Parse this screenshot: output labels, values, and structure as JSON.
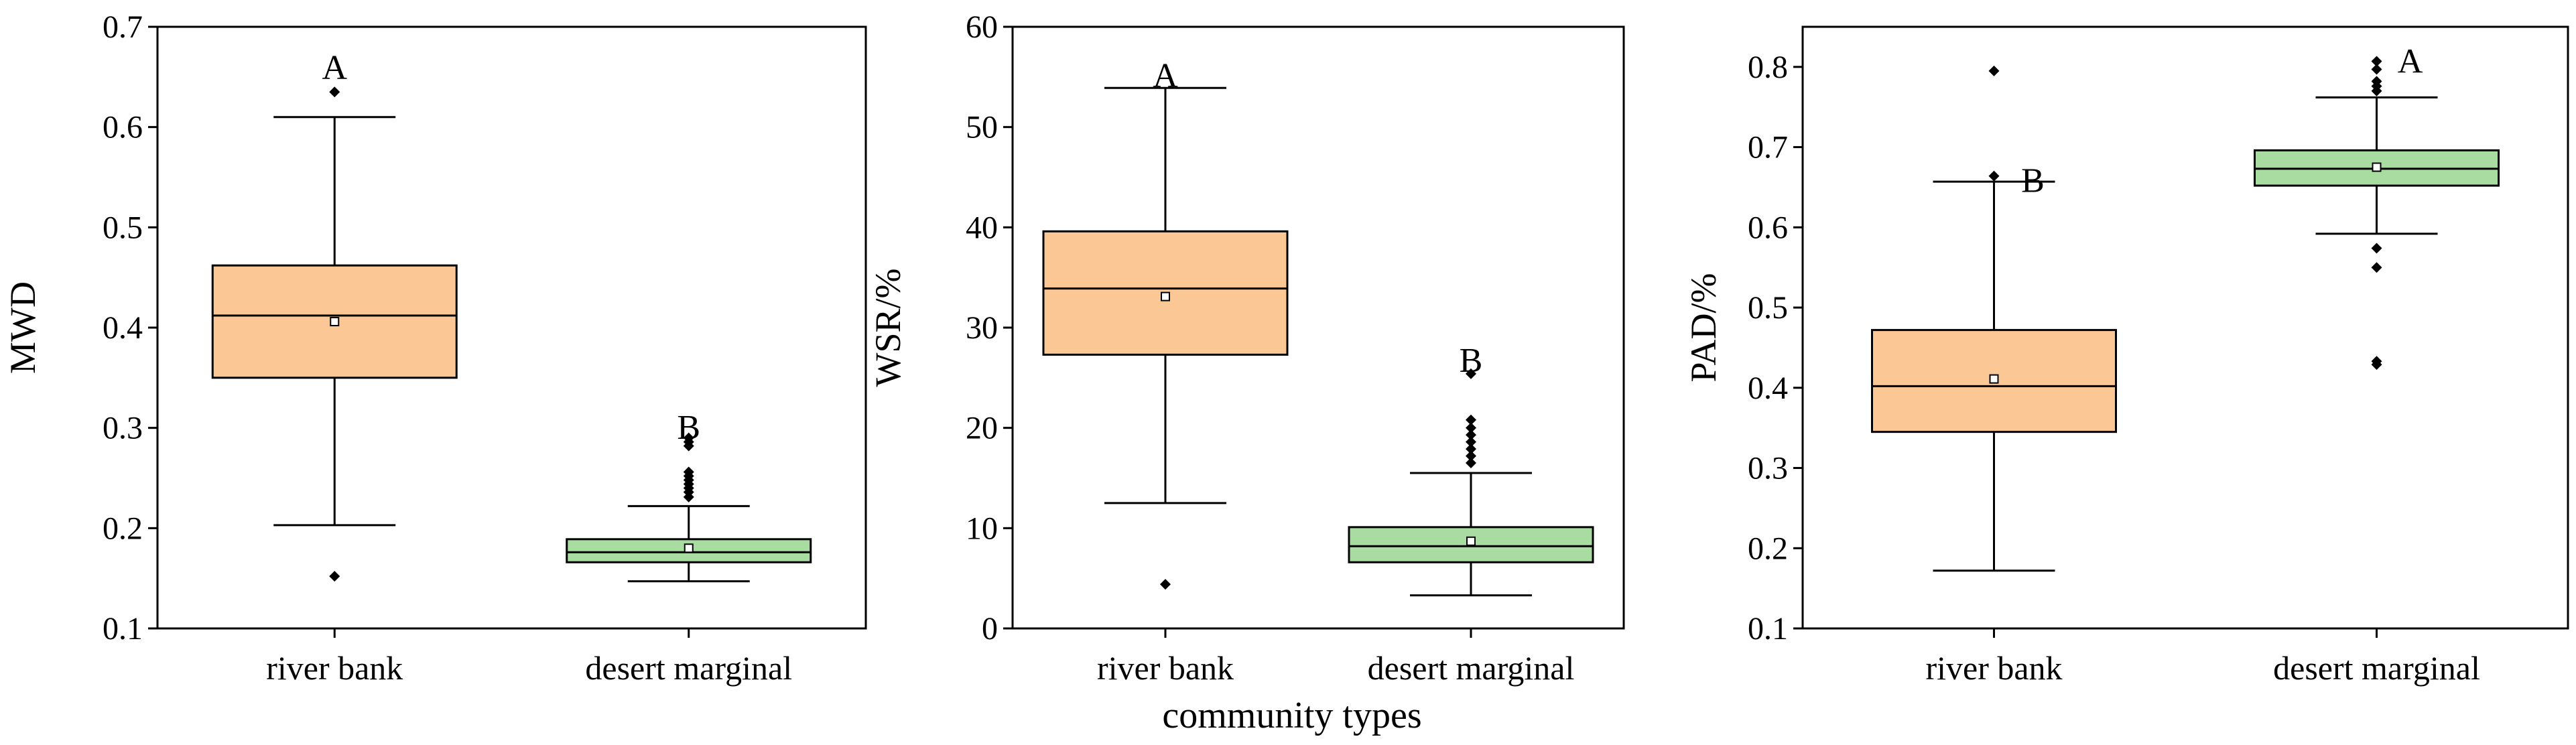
{
  "figure": {
    "shared_xlabel": "community types",
    "colors": {
      "river_bank_fill": "#FAC795",
      "desert_marginal_fill": "#A8DCA0",
      "stroke": "#000000"
    }
  },
  "chart_data": [
    {
      "type": "box",
      "ylabel": "MWD",
      "ylim": [
        0.1,
        0.7
      ],
      "yticks": [
        0.1,
        0.2,
        0.3,
        0.4,
        0.5,
        0.6,
        0.7
      ],
      "ytick_labels": [
        "0.1",
        "0.2",
        "0.3",
        "0.4",
        "0.5",
        "0.6",
        "0.7"
      ],
      "categories": [
        "river bank",
        "desert marginal"
      ],
      "boxes": [
        {
          "name": "river bank",
          "color": "#FAC795",
          "whisker_low": 0.203,
          "q1": 0.35,
          "median": 0.412,
          "q3": 0.462,
          "whisker_high": 0.61,
          "mean": 0.406,
          "outliers": [
            0.635,
            0.152
          ],
          "letter": "A",
          "letter_y": 0.66
        },
        {
          "name": "desert marginal",
          "color": "#A8DCA0",
          "whisker_low": 0.147,
          "q1": 0.166,
          "median": 0.176,
          "q3": 0.189,
          "whisker_high": 0.222,
          "mean": 0.18,
          "outliers": [
            0.231,
            0.236,
            0.24,
            0.244,
            0.248,
            0.252,
            0.256,
            0.282,
            0.286,
            0.29
          ],
          "letter": "B",
          "letter_y": 0.301
        }
      ]
    },
    {
      "type": "box",
      "ylabel": "WSR/%",
      "ylim": [
        0,
        60
      ],
      "yticks": [
        0,
        10,
        20,
        30,
        40,
        50,
        60
      ],
      "ytick_labels": [
        "0",
        "10",
        "20",
        "30",
        "40",
        "50",
        "60"
      ],
      "categories": [
        "river bank",
        "desert marginal"
      ],
      "boxes": [
        {
          "name": "river bank",
          "color": "#FAC795",
          "whisker_low": 12.5,
          "q1": 27.3,
          "median": 33.9,
          "q3": 39.6,
          "whisker_high": 53.9,
          "mean": 33.1,
          "outliers": [
            4.4
          ],
          "letter": "A",
          "letter_y": 55.2
        },
        {
          "name": "desert marginal",
          "color": "#A8DCA0",
          "whisker_low": 3.3,
          "q1": 6.6,
          "median": 8.2,
          "q3": 10.1,
          "whisker_high": 15.5,
          "mean": 8.7,
          "outliers": [
            16.5,
            17.2,
            17.9,
            18.6,
            19.3,
            20.0,
            20.8,
            25.4
          ],
          "letter": "B",
          "letter_y": 26.8
        }
      ]
    },
    {
      "type": "box",
      "ylabel": "PAD/%",
      "ylim": [
        0.1,
        0.85
      ],
      "yticks": [
        0.1,
        0.2,
        0.3,
        0.4,
        0.5,
        0.6,
        0.7,
        0.8
      ],
      "ytick_labels": [
        "0.1",
        "0.2",
        "0.3",
        "0.4",
        "0.5",
        "0.6",
        "0.7",
        "0.8"
      ],
      "categories": [
        "river bank",
        "desert marginal"
      ],
      "boxes": [
        {
          "name": "river bank",
          "color": "#FAC795",
          "whisker_low": 0.172,
          "q1": 0.345,
          "median": 0.402,
          "q3": 0.472,
          "whisker_high": 0.657,
          "mean": 0.411,
          "outliers": [
            0.795,
            0.664
          ],
          "letter": "B",
          "letter_y": 0.659
        },
        {
          "name": "desert marginal",
          "color": "#A8DCA0",
          "whisker_low": 0.592,
          "q1": 0.652,
          "median": 0.673,
          "q3": 0.696,
          "whisker_high": 0.762,
          "mean": 0.675,
          "outliers": [
            0.77,
            0.776,
            0.782,
            0.797,
            0.807,
            0.574,
            0.55,
            0.433,
            0.429
          ],
          "letter": "A",
          "letter_y": 0.808
        }
      ]
    }
  ]
}
